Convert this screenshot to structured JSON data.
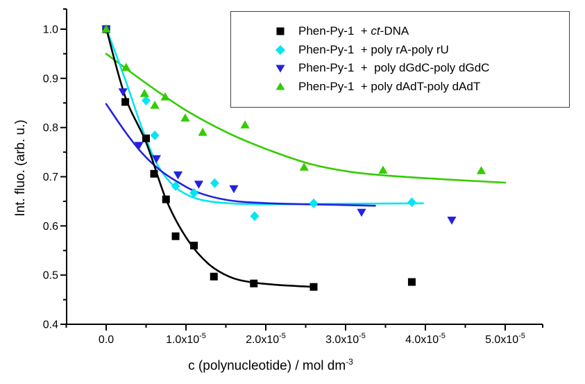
{
  "figure_background": "#ffffff",
  "chart_data": {
    "type": "scatter",
    "title": "",
    "xlabel": {
      "base": "c (polynucleotide) / mol dm",
      "exponent": "-3"
    },
    "ylabel": "Int. fluo. (arb. u.)",
    "x_unit_scale": "1e-5 mol dm^-3 per x unit",
    "xlim": [
      -0.5,
      5.5
    ],
    "ylim": [
      0.4,
      1.042
    ],
    "grid": false,
    "axis_color": "#000000",
    "x_ticks": [
      {
        "v": 0,
        "base": "0.0",
        "exp": ""
      },
      {
        "v": 1,
        "base": "1.0x10",
        "exp": "-5"
      },
      {
        "v": 2,
        "base": "2.0x10",
        "exp": "-5"
      },
      {
        "v": 3,
        "base": "3.0x10",
        "exp": "-5"
      },
      {
        "v": 4,
        "base": "4.0x10",
        "exp": "-5"
      },
      {
        "v": 5,
        "base": "5.0x10",
        "exp": "-5"
      }
    ],
    "x_minor_ticks": [
      -0.5,
      0.5,
      1.5,
      2.5,
      3.5,
      4.5,
      5.47
    ],
    "y_ticks": [
      {
        "v": 1.0,
        "label": "1.0"
      },
      {
        "v": 0.9,
        "label": "0.9"
      },
      {
        "v": 0.8,
        "label": "0.8"
      },
      {
        "v": 0.7,
        "label": "0.7"
      },
      {
        "v": 0.6,
        "label": "0.6"
      },
      {
        "v": 0.5,
        "label": "0.5"
      },
      {
        "v": 0.4,
        "label": "0.4"
      }
    ],
    "y_minor_ticks": [
      0.45,
      0.55,
      0.65,
      0.75,
      0.85,
      0.95,
      1.041
    ],
    "legend_position": "top-right",
    "series": [
      {
        "id": "ct-dna",
        "marker": "square",
        "color": "#000000",
        "legend": {
          "pre": "Phen-Py-1  + ",
          "italic": "ct",
          "post": "-DNA"
        },
        "points": [
          [
            0,
            1.0
          ],
          [
            0.24,
            0.852
          ],
          [
            0.5,
            0.778
          ],
          [
            0.6,
            0.706
          ],
          [
            0.75,
            0.654
          ],
          [
            0.87,
            0.579
          ],
          [
            1.1,
            0.56
          ],
          [
            1.35,
            0.497
          ],
          [
            1.85,
            0.483
          ],
          [
            2.6,
            0.476
          ],
          [
            3.83,
            0.486
          ]
        ],
        "fit": [
          [
            0,
            1.002
          ],
          [
            0.24,
            0.862
          ],
          [
            0.5,
            0.77
          ],
          [
            0.76,
            0.65
          ],
          [
            1.02,
            0.572
          ],
          [
            1.28,
            0.523
          ],
          [
            1.54,
            0.497
          ],
          [
            1.8,
            0.486
          ],
          [
            2.15,
            0.48
          ],
          [
            2.61,
            0.476
          ]
        ]
      },
      {
        "id": "poly-ra-poly-ru",
        "marker": "diamond",
        "color": "#00E6F2",
        "legend": {
          "pre": "Phen-Py-1  + poly rA-poly rU",
          "italic": "",
          "post": ""
        },
        "points": [
          [
            0,
            1.0
          ],
          [
            0.5,
            0.855
          ],
          [
            0.61,
            0.784
          ],
          [
            0.87,
            0.681
          ],
          [
            1.1,
            0.667
          ],
          [
            1.36,
            0.687
          ],
          [
            1.86,
            0.62
          ],
          [
            2.6,
            0.646
          ],
          [
            3.83,
            0.648
          ]
        ],
        "fit": [
          [
            0,
            1.002
          ],
          [
            0.24,
            0.897
          ],
          [
            0.45,
            0.798
          ],
          [
            0.63,
            0.728
          ],
          [
            0.8,
            0.689
          ],
          [
            0.97,
            0.667
          ],
          [
            1.19,
            0.653
          ],
          [
            1.54,
            0.646
          ],
          [
            2.06,
            0.644
          ],
          [
            2.84,
            0.645
          ],
          [
            3.97,
            0.646
          ]
        ]
      },
      {
        "id": "poly-dgdc-poly-dgdc",
        "marker": "triangle-down",
        "color": "#2222DD",
        "legend": {
          "pre": "Phen-Py-1  +  poly dGdC-poly dGdC",
          "italic": "",
          "post": ""
        },
        "points": [
          [
            0,
            1.0
          ],
          [
            0.21,
            0.873
          ],
          [
            0.41,
            0.764
          ],
          [
            0.63,
            0.737
          ],
          [
            0.9,
            0.704
          ],
          [
            1.16,
            0.685
          ],
          [
            1.6,
            0.676
          ],
          [
            3.2,
            0.628
          ],
          [
            4.33,
            0.612
          ]
        ],
        "fit": [
          [
            0.0,
            0.848
          ],
          [
            0.24,
            0.791
          ],
          [
            0.45,
            0.748
          ],
          [
            0.67,
            0.714
          ],
          [
            0.89,
            0.69
          ],
          [
            1.15,
            0.668
          ],
          [
            1.54,
            0.652
          ],
          [
            2.06,
            0.646
          ],
          [
            2.84,
            0.643
          ],
          [
            3.37,
            0.641
          ]
        ]
      },
      {
        "id": "poly-dadt-poly-dadt",
        "marker": "triangle-up",
        "color": "#33CC00",
        "legend": {
          "pre": "Phen-Py-1  + poly dAdT-poly dAdT",
          "italic": "",
          "post": ""
        },
        "points": [
          [
            0,
            1.0
          ],
          [
            0.25,
            0.922
          ],
          [
            0.48,
            0.869
          ],
          [
            0.61,
            0.845
          ],
          [
            0.74,
            0.862
          ],
          [
            0.99,
            0.819
          ],
          [
            1.21,
            0.79
          ],
          [
            1.74,
            0.805
          ],
          [
            2.48,
            0.719
          ],
          [
            3.47,
            0.713
          ],
          [
            4.7,
            0.712
          ]
        ],
        "fit": [
          [
            0,
            0.95
          ],
          [
            0.5,
            0.89
          ],
          [
            1.02,
            0.833
          ],
          [
            1.54,
            0.788
          ],
          [
            2.06,
            0.753
          ],
          [
            2.58,
            0.725
          ],
          [
            3.1,
            0.709
          ],
          [
            3.63,
            0.701
          ],
          [
            4.32,
            0.694
          ],
          [
            5.0,
            0.688
          ]
        ]
      }
    ]
  }
}
